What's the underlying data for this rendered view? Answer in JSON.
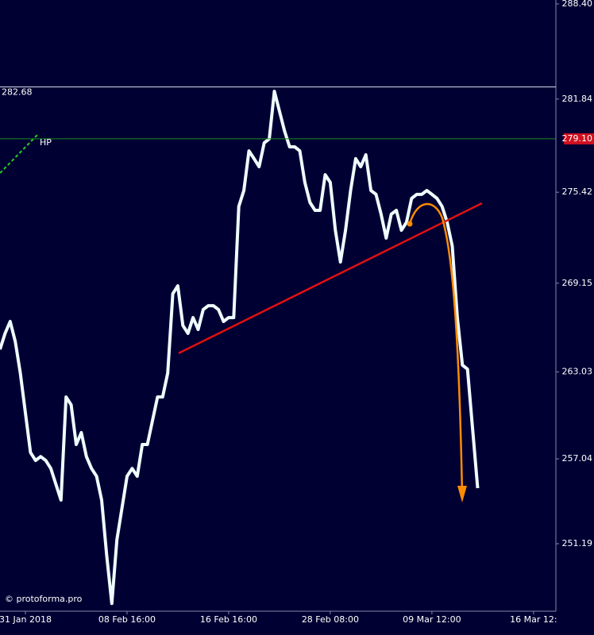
{
  "chart_data": {
    "type": "line",
    "watermark": "© protoforma.pro",
    "x": [
      0,
      1,
      2,
      3,
      4,
      5,
      6,
      7,
      8,
      9,
      10,
      11,
      12,
      13,
      14,
      15,
      16,
      17,
      18,
      19,
      20,
      21,
      22,
      23,
      24,
      25,
      26,
      27,
      28,
      29,
      30,
      31,
      32,
      33,
      34,
      35,
      36,
      37,
      38,
      39,
      40,
      41,
      42,
      43,
      44,
      45,
      46,
      47,
      48,
      49,
      50,
      51,
      52,
      53,
      54,
      55,
      56,
      57,
      58,
      59,
      60,
      61,
      62,
      63,
      64,
      65,
      66,
      67,
      68,
      69,
      70,
      71,
      72,
      73,
      74,
      75,
      76,
      77,
      78,
      79,
      80,
      81,
      82,
      83,
      84,
      85,
      86,
      87,
      88,
      89,
      90,
      91,
      92,
      93,
      94
    ],
    "series": [
      {
        "color": "#eefcff",
        "values": [
          264.59,
          265.69,
          266.51,
          265.14,
          262.95,
          260.21,
          257.48,
          256.93,
          257.2,
          256.93,
          256.38,
          255.29,
          254.2,
          261.31,
          260.76,
          258.03,
          258.85,
          257.2,
          256.38,
          255.84,
          254.2,
          250.36,
          247.07,
          251.46,
          253.65,
          255.84,
          256.38,
          255.84,
          258.03,
          258.03,
          259.67,
          261.31,
          261.31,
          262.95,
          268.42,
          268.97,
          266.23,
          265.69,
          266.78,
          265.96,
          267.33,
          267.6,
          267.6,
          267.33,
          266.51,
          266.78,
          266.78,
          274.44,
          275.54,
          278.27,
          277.73,
          277.18,
          278.82,
          279.1,
          282.38,
          281.01,
          279.64,
          278.55,
          278.55,
          278.27,
          276.09,
          274.72,
          274.17,
          274.17,
          276.63,
          276.09,
          272.8,
          270.61,
          272.8,
          275.54,
          277.73,
          277.18,
          278,
          275.54,
          275.27,
          273.9,
          272.26,
          273.9,
          274.17,
          272.8,
          273.35,
          274.99,
          275.27,
          275.27,
          275.54,
          275.27,
          274.99,
          274.44,
          273.35,
          271.71,
          266.78,
          263.5,
          263.22,
          259.12,
          255.02
        ]
      }
    ],
    "xlim": [
      0,
      109.4
    ],
    "xticks": [
      {
        "value": 5,
        "label": "31 Jan 2018"
      },
      {
        "value": 25,
        "label": "08 Feb 16:00"
      },
      {
        "value": 45,
        "label": "16 Feb 16:00"
      },
      {
        "value": 65,
        "label": "28 Feb 08:00"
      },
      {
        "value": 85,
        "label": "09 Mar 12:00"
      },
      {
        "value": 105,
        "label": "16 Mar 12:"
      }
    ],
    "ylim": [
      246.54,
      288.67
    ],
    "yticks": [
      {
        "value": 288.4,
        "label": "288.40"
      },
      281.84,
      275.42,
      269.15,
      263.03,
      257.04,
      251.19
    ],
    "hlines": [
      {
        "value": 282.68,
        "label": "282.68",
        "color": "#d8d8f0",
        "side": "left"
      },
      {
        "value": 279.1,
        "label": "279.10",
        "color": "#1a8c1a",
        "side": "right",
        "tag": "HP"
      }
    ]
  }
}
